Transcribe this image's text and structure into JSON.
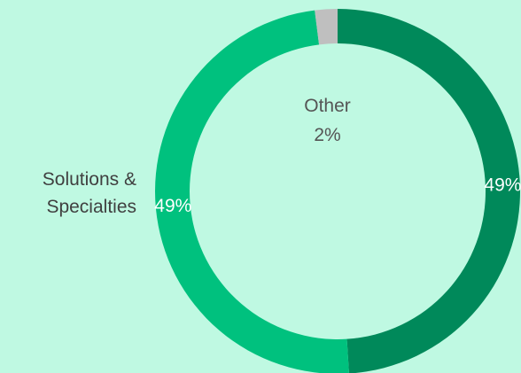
{
  "chart_data": {
    "type": "pie",
    "variant": "donut",
    "title": "",
    "slices": [
      {
        "category": "",
        "value": 49,
        "label": "49%",
        "color": "#00895a"
      },
      {
        "category": "Solutions & Specialties",
        "category_lines": [
          "Solutions &",
          "Specialties"
        ],
        "value": 49,
        "label": "49%",
        "color": "#00c17e"
      },
      {
        "category": "Other",
        "value": 2,
        "label": "2%",
        "color": "#bfbfbf"
      }
    ],
    "legend": "none",
    "background_color": "#bff9e2"
  }
}
